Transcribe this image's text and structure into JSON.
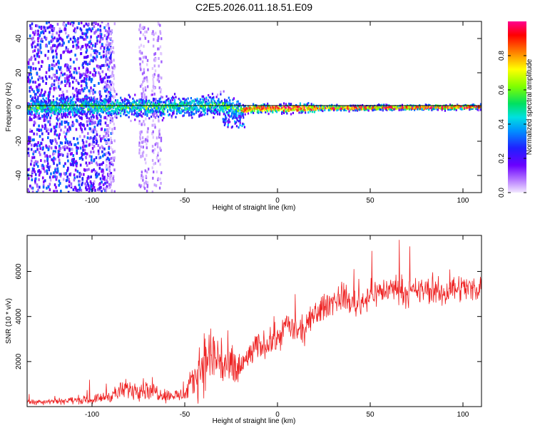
{
  "chart_data": [
    {
      "type": "heatmap",
      "title": "C2E5.2026.011.18.51.E09",
      "xlabel": "Height of straight line (km)",
      "ylabel": "Frequency (Hz)",
      "xlim": [
        -135,
        110
      ],
      "ylim": [
        -50,
        50
      ],
      "xticks": [
        -100,
        -50,
        0,
        50,
        100
      ],
      "yticks": [
        -40,
        -20,
        0,
        20,
        40
      ],
      "colorbar": {
        "label": "Normalized spectral amplitude",
        "range": [
          0.0,
          1.0
        ],
        "ticks": [
          0.0,
          0.2,
          0.4,
          0.6,
          0.8
        ],
        "colors": [
          "#f0e6ff",
          "#8a2be2",
          "#3300ff",
          "#0066ff",
          "#00d0ff",
          "#00e070",
          "#80ff00",
          "#ffff00",
          "#ff8c00",
          "#ff0000",
          "#ff0090"
        ]
      },
      "band_center_hz": [
        {
          "x": -110,
          "y": 0
        },
        {
          "x": -60,
          "y": 0
        },
        {
          "x": -30,
          "y": 1
        },
        {
          "x": -20,
          "y": -2
        },
        {
          "x": -15,
          "y": -1
        },
        {
          "x": 110,
          "y": 0
        }
      ]
    },
    {
      "type": "line",
      "xlabel": "Height of straight line (km)",
      "ylabel": "SNR (10 * v/v)",
      "xlim": [
        -135,
        110
      ],
      "ylim": [
        0,
        7600
      ],
      "xticks": [
        -100,
        -50,
        0,
        50,
        100
      ],
      "yticks": [
        2000,
        4000,
        6000
      ],
      "line_color": "#ff0000",
      "series": [
        {
          "name": "SNR",
          "x": [
            -135,
            -120,
            -100,
            -90,
            -80,
            -70,
            -60,
            -50,
            -45,
            -40,
            -35,
            -30,
            -25,
            -20,
            -15,
            -10,
            -5,
            0,
            5,
            10,
            15,
            20,
            25,
            30,
            35,
            40,
            45,
            50,
            55,
            60,
            65,
            70,
            75,
            80,
            85,
            90,
            95,
            100,
            105,
            110
          ],
          "y": [
            200,
            250,
            300,
            500,
            800,
            800,
            500,
            500,
            1200,
            2000,
            2300,
            2000,
            1600,
            1700,
            2300,
            2700,
            2800,
            3000,
            3700,
            3300,
            3400,
            4100,
            4400,
            4700,
            4900,
            4600,
            4600,
            5000,
            5100,
            5200,
            5300,
            5000,
            5100,
            5200,
            5100,
            5000,
            5300,
            5300,
            5200,
            5400
          ]
        }
      ]
    }
  ]
}
